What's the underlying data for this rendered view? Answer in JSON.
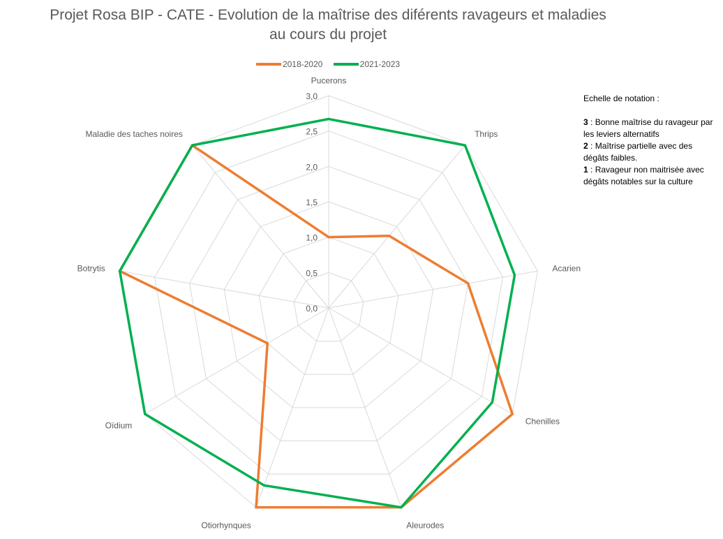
{
  "chart_data": {
    "type": "radar",
    "title": "Projet Rosa BIP - CATE  - Evolution de la maîtrise des diférents ravageurs et maladies au cours du projet",
    "title_lines": [
      "Projet Rosa BIP - CATE  - Evolution de la maîtrise des diférents ravageurs et maladies",
      "au cours du projet"
    ],
    "categories": [
      "Pucerons",
      "Thrips",
      "Acarien",
      "Chenilles",
      "Aleurodes",
      "Otiorhynques",
      "Oïdium",
      "Botrytis",
      "Maladie des taches noires"
    ],
    "series": [
      {
        "name": "2018-2020",
        "color": "#ED7D31",
        "values": [
          1.0,
          1.33,
          2.0,
          3.0,
          3.0,
          3.0,
          1.0,
          3.0,
          3.0
        ]
      },
      {
        "name": "2021-2023",
        "color": "#00B050",
        "values": [
          2.67,
          3.0,
          2.67,
          2.67,
          3.0,
          2.67,
          3.0,
          3.0,
          3.0
        ]
      }
    ],
    "rlim": [
      0,
      3
    ],
    "ticks": [
      "0,0",
      "0,5",
      "1,0",
      "1,5",
      "2,0",
      "2,5",
      "3,0"
    ],
    "tick_values": [
      0,
      0.5,
      1,
      1.5,
      2,
      2.5,
      3
    ],
    "grid": true,
    "legend_position": "top"
  },
  "note": {
    "heading": "Echelle de notation :",
    "items": [
      {
        "key": "3",
        "sep": " : ",
        "text": "Bonne maîtrise du ravageur par les leviers alternatifs"
      },
      {
        "key": "2",
        "sep": " : ",
        "text": "Maîtrise partielle avec des dégâts faibles."
      },
      {
        "key": "1",
        "sep": " : ",
        "text": "Ravageur non maitrisée avec dégâts notables sur la culture"
      }
    ]
  }
}
